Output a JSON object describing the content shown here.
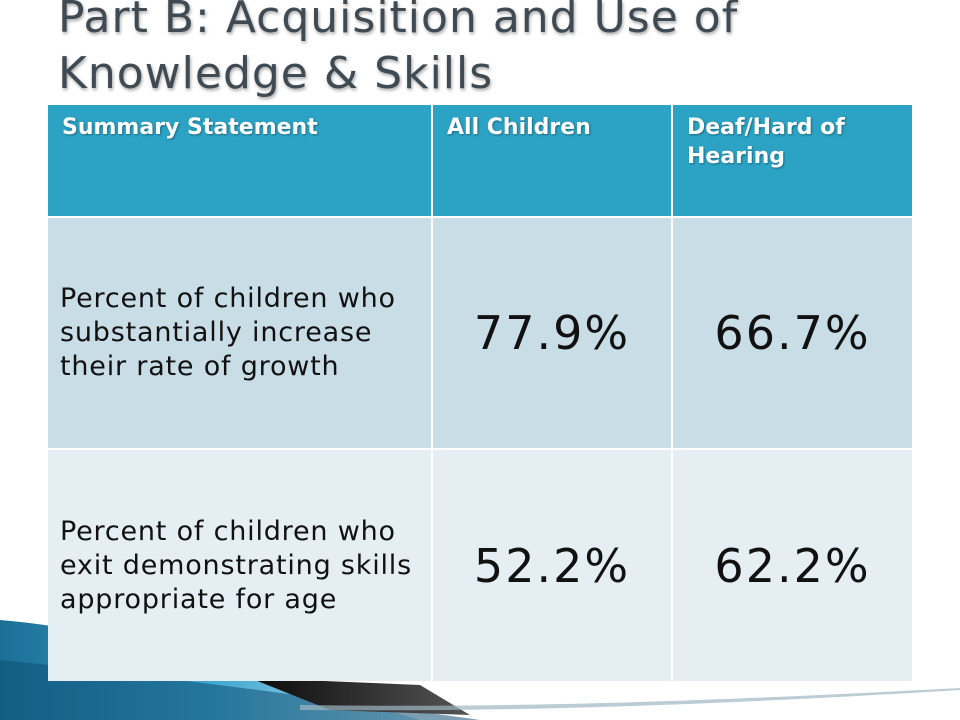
{
  "slide": {
    "title": "Part B:  Acquisition and Use of Knowledge & Skills"
  },
  "table": {
    "headers": [
      "Summary Statement",
      "All Children",
      "Deaf/Hard of Hearing"
    ],
    "rows": [
      {
        "statement": "Percent of children who substantially increase their rate of growth",
        "all_children": "77.9%",
        "deaf_hard_of_hearing": "66.7%"
      },
      {
        "statement": "Percent of children who exit demonstrating skills appropriate for age",
        "all_children": "52.2%",
        "deaf_hard_of_hearing": "62.2%"
      }
    ]
  },
  "colors": {
    "header_bg": "#2ca3c4",
    "row1_bg": "#c9dde7",
    "row2_bg": "#e4eef3",
    "title_text": "#3f4a52"
  }
}
